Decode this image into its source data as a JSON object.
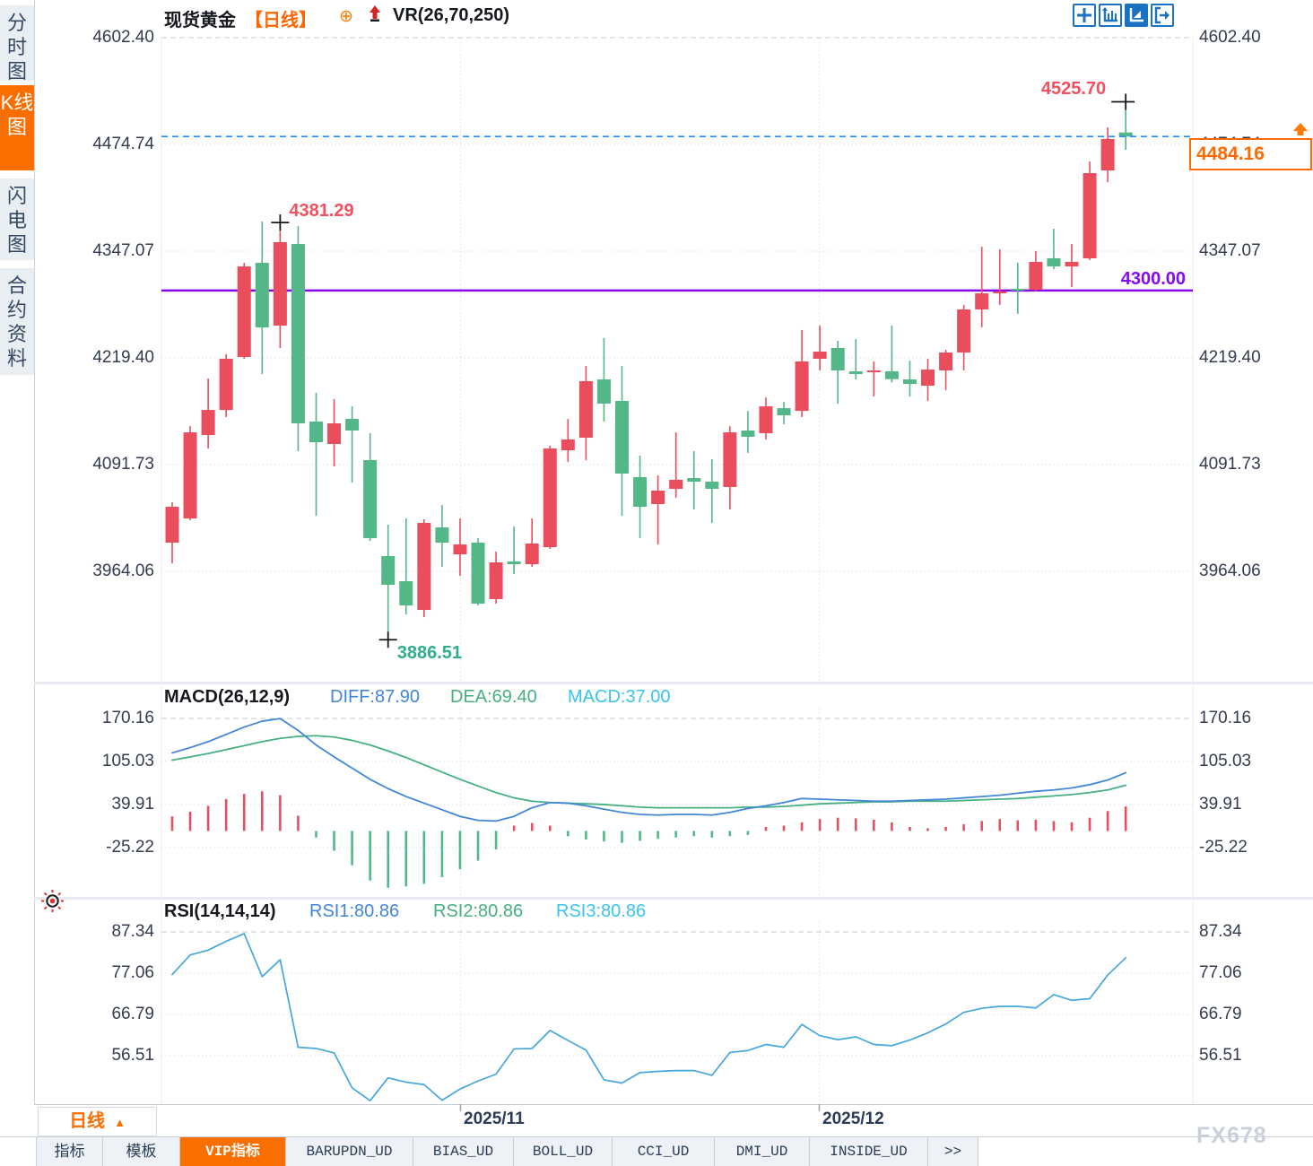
{
  "app": {
    "watermark": "FX678"
  },
  "sidebar": {
    "tabs": [
      {
        "label": "分时图",
        "active": false
      },
      {
        "label": "K线图",
        "active": true
      },
      {
        "label": "闪电图",
        "active": false
      },
      {
        "label": "合约资料",
        "active": false
      }
    ]
  },
  "header": {
    "symbol": "现货黄金",
    "period": "【日线】",
    "plus_icon": "⊕",
    "overlay_indicator": "VR(26,70,250)"
  },
  "toolbar": {
    "icons": [
      "pan-crosshair-icon",
      "axis-zoom-icon",
      "axis-play-icon",
      "collapse-right-icon"
    ],
    "active_index": 2
  },
  "main_chart": {
    "y_tick_labels": [
      "4602.40",
      "4474.74",
      "4347.07",
      "4219.40",
      "4091.73",
      "3964.06"
    ],
    "annotations": {
      "swing_high": "4525.70",
      "peak": "4381.29",
      "swing_low": "3886.51",
      "support_line": "4300.00"
    },
    "current_price": "4484.16"
  },
  "macd_panel": {
    "title": "MACD(26,12,9)",
    "diff_label": "DIFF:87.90",
    "dea_label": "DEA:69.40",
    "macd_label": "MACD:37.00",
    "y_tick_labels": [
      "170.16",
      "105.03",
      "39.91",
      "-25.22"
    ]
  },
  "rsi_panel": {
    "title": "RSI(14,14,14)",
    "rsi1_label": "RSI1:80.86",
    "rsi2_label": "RSI2:80.86",
    "rsi3_label": "RSI3:80.86",
    "y_tick_labels": [
      "87.34",
      "77.06",
      "66.79",
      "56.51"
    ]
  },
  "x_axis": {
    "labels": [
      "2025/11",
      "2025/12"
    ]
  },
  "period_button": {
    "label": "日线",
    "arrow": "▲"
  },
  "bottom_tabs": [
    {
      "label": "指标",
      "active": false
    },
    {
      "label": "模板",
      "active": false
    },
    {
      "label": "VIP指标",
      "active": true
    },
    {
      "label": "BARUPDN_UD",
      "active": false
    },
    {
      "label": "BIAS_UD",
      "active": false
    },
    {
      "label": "BOLL_UD",
      "active": false
    },
    {
      "label": "CCI_UD",
      "active": false
    },
    {
      "label": "DMI_UD",
      "active": false
    },
    {
      "label": "INSIDE_UD",
      "active": false
    },
    {
      "label": ">>",
      "active": false
    }
  ],
  "colors": {
    "up": "#ea4d5c",
    "down": "#53b788",
    "accent_orange": "#ff6a00",
    "support_purple": "#8709f3",
    "current_price_blue": "#1e8fff",
    "diff_blue": "#4286d8",
    "dea_green": "#45b080",
    "macd_cyan": "#38c4ee",
    "rsi_line": "#45a7dc",
    "grid": "#dcdfe4"
  },
  "chart_data": [
    {
      "type": "candlestick",
      "symbol": "现货黄金",
      "period": "日线",
      "y_ticks": [
        4602.4,
        4474.74,
        4347.07,
        4219.4,
        4091.73,
        3964.06
      ],
      "ylim": [
        3870,
        4610
      ],
      "x_gridlines": [
        "2025/11",
        "2025/12"
      ],
      "marked_high": 4525.7,
      "marked_peak": 4381.29,
      "marked_low": 3886.51,
      "support_line": 4300.0,
      "current_price": 4484.16,
      "candles": [
        [
          3998.4,
          4046.6,
          3973.7,
          4041.3
        ],
        [
          4027.3,
          4137.8,
          4025.2,
          4130.3
        ],
        [
          4127.1,
          4194.7,
          4111.0,
          4157.1
        ],
        [
          4157.1,
          4223.7,
          4148.6,
          4218.3
        ],
        [
          4220.5,
          4333.1,
          4218.3,
          4328.8
        ],
        [
          4333.1,
          4382.5,
          4200.1,
          4255.9
        ],
        [
          4258.0,
          4381.3,
          4231.2,
          4357.8
        ],
        [
          4355.6,
          4377.1,
          4107.8,
          4141.1
        ],
        [
          4143.2,
          4177.5,
          4030.5,
          4118.5
        ],
        [
          4116.4,
          4170.0,
          4089.6,
          4141.1
        ],
        [
          4146.4,
          4161.4,
          4070.3,
          4132.5
        ],
        [
          4097.1,
          4129.3,
          4000.5,
          4003.8
        ],
        [
          3982.3,
          4019.9,
          3886.5,
          3948.0
        ],
        [
          3952.3,
          4027.3,
          3912.6,
          3923.3
        ],
        [
          3917.9,
          4026.3,
          3909.3,
          4022.0
        ],
        [
          4016.6,
          4043.4,
          3969.4,
          3998.4
        ],
        [
          3984.4,
          4027.3,
          3958.7,
          3996.2
        ],
        [
          3998.4,
          4003.8,
          3923.3,
          3925.4
        ],
        [
          3930.8,
          3987.6,
          3925.4,
          3974.8
        ],
        [
          3975.9,
          4017.7,
          3960.8,
          3972.6
        ],
        [
          3972.6,
          4027.3,
          3969.4,
          3997.3
        ],
        [
          3993.0,
          4114.3,
          3990.9,
          4111.0
        ],
        [
          4108.9,
          4146.4,
          4095.0,
          4121.8
        ],
        [
          4123.9,
          4209.7,
          4097.1,
          4191.5
        ],
        [
          4193.6,
          4243.0,
          4143.2,
          4164.7
        ],
        [
          4167.9,
          4209.7,
          4030.5,
          4081.0
        ],
        [
          4076.7,
          4102.5,
          4003.8,
          4041.3
        ],
        [
          4044.5,
          4078.9,
          3996.2,
          4060.6
        ],
        [
          4062.8,
          4130.3,
          4052.1,
          4073.5
        ],
        [
          4075.6,
          4107.8,
          4038.1,
          4071.3
        ],
        [
          4071.3,
          4098.2,
          4022.0,
          4062.8
        ],
        [
          4064.9,
          4137.8,
          4038.1,
          4130.3
        ],
        [
          4132.5,
          4156.0,
          4105.7,
          4125.0
        ],
        [
          4129.3,
          4172.1,
          4121.8,
          4161.4
        ],
        [
          4159.2,
          4166.8,
          4140.0,
          4150.7
        ],
        [
          4156.0,
          4252.7,
          4148.6,
          4215.1
        ],
        [
          4218.3,
          4258.0,
          4204.4,
          4226.9
        ],
        [
          4231.2,
          4239.8,
          4164.7,
          4204.4
        ],
        [
          4203.3,
          4241.9,
          4193.6,
          4200.1
        ],
        [
          4202.2,
          4215.1,
          4173.2,
          4204.4
        ],
        [
          4203.3,
          4258.0,
          4190.0,
          4194.0
        ],
        [
          4193.6,
          4216.1,
          4173.2,
          4188.2
        ],
        [
          4186.1,
          4218.3,
          4167.9,
          4205.4
        ],
        [
          4204.4,
          4229.0,
          4180.8,
          4225.8
        ],
        [
          4225.8,
          4282.7,
          4204.4,
          4277.3
        ],
        [
          4277.3,
          4352.4,
          4255.9,
          4296.6
        ],
        [
          4296.6,
          4349.2,
          4282.7,
          4298.8
        ],
        [
          4302.0,
          4333.1,
          4272.0,
          4299.9
        ],
        [
          4300.9,
          4347.1,
          4298.8,
          4334.2
        ],
        [
          4338.5,
          4373.9,
          4325.5,
          4328.8
        ],
        [
          4328.8,
          4355.6,
          4304.1,
          4334.2
        ],
        [
          4338.5,
          4454.4,
          4336.4,
          4440.4
        ],
        [
          4443.6,
          4495.1,
          4429.7,
          4481.2
        ],
        [
          4489.0,
          4525.7,
          4468.2,
          4484.2
        ]
      ]
    },
    {
      "type": "macd",
      "name": "MACD",
      "params": [
        26,
        12,
        9
      ],
      "y_ticks": [
        170.16,
        105.03,
        39.91,
        -25.22
      ],
      "last": {
        "diff": 87.9,
        "dea": 69.4,
        "macd": 37.0
      },
      "diff": [
        118,
        126,
        135,
        146,
        157,
        166,
        170,
        152,
        130,
        112,
        95,
        78,
        64,
        52,
        42,
        32,
        22,
        16,
        15,
        22,
        35,
        43,
        42,
        38,
        33,
        28,
        25,
        24,
        25,
        25,
        24,
        28,
        34,
        38,
        43,
        49,
        48,
        47,
        46,
        45,
        45,
        46,
        47,
        48,
        50,
        52,
        54,
        57,
        60,
        62,
        65,
        70,
        77,
        88
      ],
      "dea": [
        107,
        112,
        117,
        123,
        129,
        135,
        140,
        143,
        144,
        142,
        137,
        130,
        121,
        111,
        100,
        89,
        78,
        68,
        58,
        50,
        45,
        43,
        42,
        41,
        40,
        38,
        36,
        35,
        35,
        35,
        35,
        35,
        36,
        36,
        37,
        39,
        41,
        42,
        43,
        44,
        44,
        45,
        45,
        45,
        46,
        47,
        48,
        49,
        51,
        53,
        55,
        58,
        62,
        69
      ],
      "histogram": [
        22,
        29,
        38,
        48,
        56,
        60,
        54,
        23,
        -10,
        -30,
        -52,
        -75,
        -86,
        -84,
        -80,
        -70,
        -58,
        -45,
        -28,
        8,
        12,
        8,
        -8,
        -13,
        -16,
        -18,
        -15,
        -12,
        -10,
        -8,
        -10,
        -8,
        -6,
        6,
        8,
        13,
        18,
        20,
        19,
        17,
        13,
        6,
        4,
        6,
        10,
        15,
        18,
        16,
        17,
        15,
        13,
        20,
        30,
        37
      ]
    },
    {
      "type": "line",
      "name": "RSI",
      "params": [
        14,
        14,
        14
      ],
      "y_ticks": [
        87.34,
        77.06,
        66.79,
        56.51
      ],
      "last": {
        "rsi1": 80.86,
        "rsi2": 80.86,
        "rsi3": 80.86
      },
      "values": [
        76.7,
        81.6,
        82.8,
        85.0,
        86.9,
        76.2,
        80.4,
        58.6,
        58.3,
        57.2,
        48.5,
        45.3,
        51.0,
        49.9,
        49.3,
        45.4,
        48.2,
        50.2,
        51.9,
        58.2,
        58.3,
        62.8,
        60.3,
        57.9,
        50.5,
        49.7,
        52.3,
        52.6,
        52.8,
        52.8,
        51.6,
        57.3,
        57.8,
        59.3,
        58.6,
        64.3,
        61.5,
        60.5,
        61.2,
        59.3,
        59.0,
        60.4,
        62.2,
        64.4,
        67.3,
        68.3,
        68.8,
        68.8,
        68.4,
        71.7,
        70.3,
        70.7,
        76.6,
        80.9
      ]
    }
  ]
}
